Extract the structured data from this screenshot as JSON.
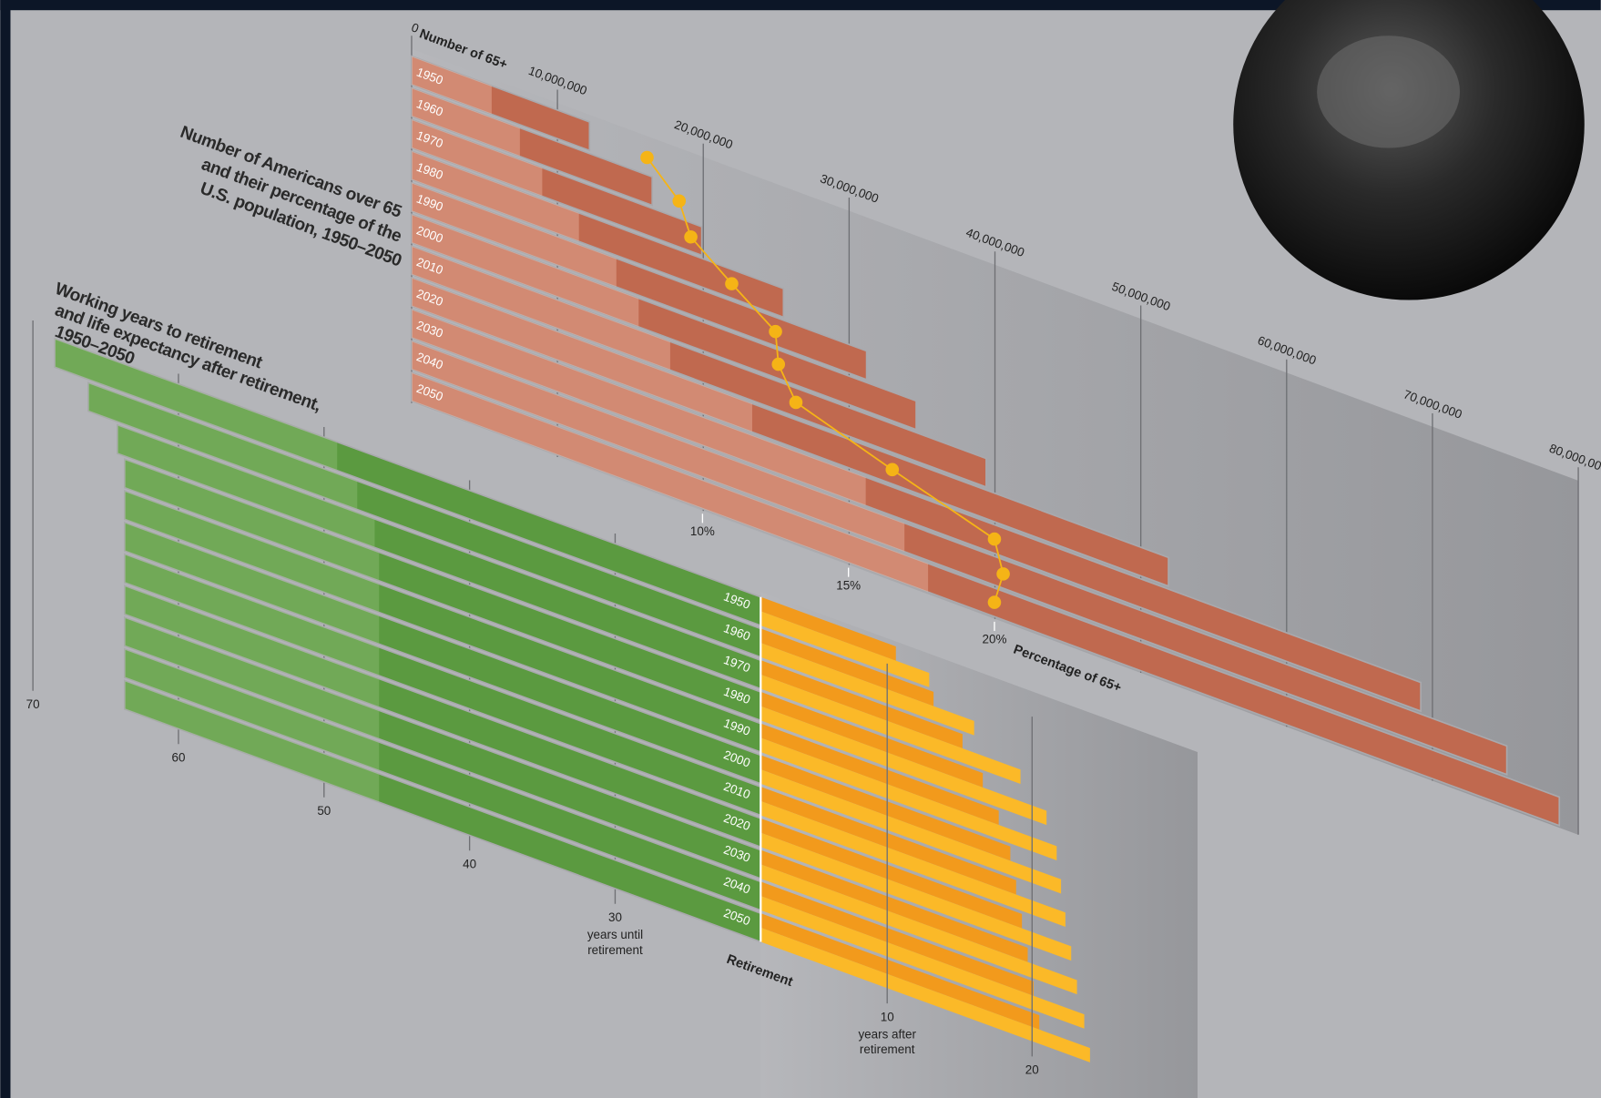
{
  "chart_data": [
    {
      "type": "bar",
      "title": [
        "Number of Americans over 65",
        "and their percentage of the",
        "U.S. population, 1950–2050"
      ],
      "categories": [
        "1950",
        "1960",
        "1970",
        "1980",
        "1990",
        "2000",
        "2010",
        "2020",
        "2030",
        "2040",
        "2050"
      ],
      "xlabel": "Number of 65+",
      "values": [
        12200000,
        16500000,
        19900000,
        25500000,
        31200000,
        34600000,
        39400000,
        51900000,
        69200000,
        75100000,
        78700000
      ],
      "color": "#c0694f",
      "xlim": [
        0,
        80000000
      ],
      "xticks": [
        0,
        {
          "value": 10000000,
          "label": "10,000,000"
        },
        {
          "value": 20000000,
          "label": "20,000,000"
        },
        {
          "value": 30000000,
          "label": "30,000,000"
        },
        {
          "value": 40000000,
          "label": "40,000,000"
        },
        {
          "value": 50000000,
          "label": "50,000,000"
        },
        {
          "value": 60000000,
          "label": "60,000,000"
        },
        {
          "value": 70000000,
          "label": "70,000,000"
        },
        {
          "value": 80000000,
          "label": "80,000,000"
        }
      ],
      "line": {
        "type": "line",
        "xlabel": "Percentage of 65+",
        "values": [
          8.1,
          9.2,
          9.6,
          11.0,
          12.5,
          12.6,
          13.2,
          16.5,
          20.0,
          20.3,
          20.0
        ],
        "color": "#f5b416",
        "xlim": [
          0,
          40
        ],
        "xticks": [
          {
            "value": 10,
            "label": "10%"
          },
          {
            "value": 15,
            "label": "15%"
          },
          {
            "value": 20,
            "label": "20%"
          }
        ]
      }
    },
    {
      "type": "bar",
      "title": [
        "Working years to retirement",
        "and life expectancy after retirement,",
        "1950–2050"
      ],
      "categories": [
        "1950",
        "1960",
        "1970",
        "1980",
        "1990",
        "2000",
        "2010",
        "2020",
        "2030",
        "2040",
        "2050"
      ],
      "xlabel": [
        "years until",
        "retirement"
      ],
      "values": [
        68.5,
        66.2,
        64.2,
        63.7,
        63.7,
        63.7,
        63.7,
        63.7,
        63.7,
        63.7,
        63.7
      ],
      "color": "#5b9a40",
      "xlim": [
        70,
        20
      ],
      "xticks": [
        70,
        60,
        50,
        40,
        30
      ],
      "retirement_label": "Retirement",
      "after": {
        "xlabel": [
          "years after",
          "retirement"
        ],
        "series": [
          {
            "color": "#f29a1c",
            "values": [
              10.6,
              13.2,
              15.2,
              16.6,
              17.7,
              18.5,
              18.9,
              19.3,
              19.7,
              20.1,
              20.5
            ]
          },
          {
            "color": "#fbb928",
            "values": [
              12.9,
              16.0,
              19.2,
              21.0,
              21.7,
              22.0,
              22.3,
              22.7,
              23.1,
              23.6,
              24.0
            ]
          }
        ],
        "xlim": [
          0,
          31
        ],
        "xticks": [
          10,
          20
        ]
      }
    }
  ]
}
